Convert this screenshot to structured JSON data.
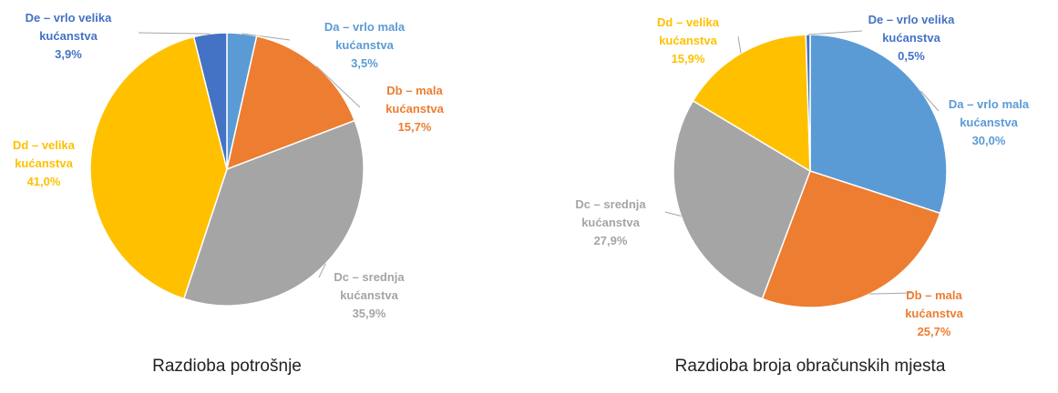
{
  "chart_data": [
    {
      "type": "pie",
      "title": "Razdioba potrošnje",
      "categories": [
        "Da – vrlo mala kućanstva",
        "Db – mala kućanstva",
        "Dc – srednja kućanstva",
        "Dd – velika kućanstva",
        "De – vrlo velika kućanstva"
      ],
      "values": [
        3.5,
        15.7,
        35.9,
        41.0,
        3.9
      ],
      "value_labels": [
        "3,5%",
        "15,7%",
        "35,9%",
        "41,0%",
        "3,9%"
      ],
      "colors": [
        "#5b9bd5",
        "#ed7d31",
        "#a5a5a5",
        "#ffc000",
        "#4472c4"
      ]
    },
    {
      "type": "pie",
      "title": "Razdioba broja obračunskih mjesta",
      "categories": [
        "Da – vrlo mala kućanstva",
        "Db – mala kućanstva",
        "Dc – srednja kućanstva",
        "Dd – velika kućanstva",
        "De – vrlo velika kućanstva"
      ],
      "values": [
        30.0,
        25.7,
        27.9,
        15.9,
        0.5
      ],
      "value_labels": [
        "30,0%",
        "25,7%",
        "27,9%",
        "15,9%",
        "0,5%"
      ],
      "colors": [
        "#5b9bd5",
        "#ed7d31",
        "#a5a5a5",
        "#ffc000",
        "#4472c4"
      ]
    }
  ]
}
